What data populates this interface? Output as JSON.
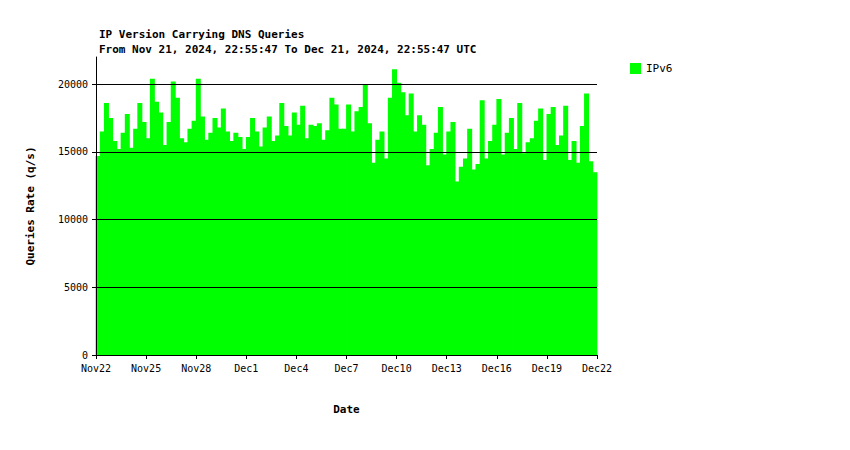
{
  "chart_data": {
    "type": "bar",
    "title": "IP Version Carrying DNS Queries",
    "subtitle": "From Nov 21, 2024, 22:55:47 To Dec 21, 2024, 22:55:47 UTC",
    "x_label": "Date",
    "y_label": "Queries Rate (q/s)",
    "x": [
      0.125,
      0.375,
      0.625,
      0.875,
      1.125,
      1.375,
      1.625,
      1.875,
      2.125,
      2.375,
      2.625,
      2.875,
      3.125,
      3.375,
      3.625,
      3.875,
      4.125,
      4.375,
      4.625,
      4.875,
      5.125,
      5.375,
      5.625,
      5.875,
      6.125,
      6.375,
      6.625,
      6.875,
      7.125,
      7.375,
      7.625,
      7.875,
      8.125,
      8.375,
      8.625,
      8.875,
      9.125,
      9.375,
      9.625,
      9.875,
      10.125,
      10.375,
      10.625,
      10.875,
      11.125,
      11.375,
      11.625,
      11.875,
      12.125,
      12.375,
      12.625,
      12.875,
      13.125,
      13.375,
      13.625,
      13.875,
      14.125,
      14.375,
      14.625,
      14.875,
      15.125,
      15.375,
      15.625,
      15.875,
      16.125,
      16.375,
      16.625,
      16.875,
      17.125,
      17.375,
      17.625,
      17.875,
      18.125,
      18.375,
      18.625,
      18.875,
      19.125,
      19.375,
      19.625,
      19.875,
      20.125,
      20.375,
      20.625,
      20.875,
      21.125,
      21.375,
      21.625,
      21.875,
      22.125,
      22.375,
      22.625,
      22.875,
      23.125,
      23.375,
      23.625,
      23.875,
      24.125,
      24.375,
      24.625,
      24.875,
      25.125,
      25.375,
      25.625,
      25.875,
      26.125,
      26.375,
      26.625,
      26.875,
      27.125,
      27.375,
      27.625,
      27.875,
      28.125,
      28.375,
      28.625,
      28.875,
      29.125,
      29.375,
      29.625,
      29.875
    ],
    "series": [
      {
        "name": "IPv6",
        "color": "#00ff00",
        "values": [
          14700,
          16500,
          18600,
          17500,
          15800,
          15200,
          16400,
          17800,
          15300,
          16700,
          18600,
          17200,
          16000,
          20400,
          18700,
          17900,
          15500,
          17200,
          20200,
          19000,
          16000,
          15700,
          16700,
          17300,
          20400,
          17600,
          15900,
          16400,
          17500,
          16800,
          18200,
          16500,
          15800,
          16400,
          16100,
          15200,
          16100,
          17500,
          16500,
          15400,
          16800,
          17600,
          15800,
          16200,
          18600,
          16900,
          16200,
          17900,
          17000,
          18400,
          16000,
          17000,
          16900,
          17100,
          15900,
          16600,
          19000,
          18500,
          16700,
          16700,
          18500,
          16500,
          18000,
          18300,
          20000,
          17100,
          14200,
          15900,
          16500,
          14500,
          19000,
          21100,
          20100,
          19400,
          17700,
          19300,
          16500,
          17700,
          17000,
          14000,
          15200,
          16400,
          18300,
          14800,
          16500,
          17200,
          12800,
          13900,
          14500,
          16700,
          13700,
          14100,
          18800,
          14500,
          15800,
          17000,
          18900,
          14800,
          16400,
          17500,
          15200,
          18600,
          14900,
          15700,
          16000,
          17300,
          18200,
          14400,
          17800,
          18300,
          15500,
          16200,
          18400,
          14400,
          15800,
          14200,
          16900,
          19300,
          14300,
          13500
        ]
      }
    ],
    "xlim": [
      0,
      30
    ],
    "xticks": [
      {
        "value": 0,
        "label": "Nov22"
      },
      {
        "value": 3,
        "label": "Nov25"
      },
      {
        "value": 6,
        "label": "Nov28"
      },
      {
        "value": 9,
        "label": "Dec1"
      },
      {
        "value": 12,
        "label": "Dec4"
      },
      {
        "value": 15,
        "label": "Dec7"
      },
      {
        "value": 18,
        "label": "Dec10"
      },
      {
        "value": 21,
        "label": "Dec13"
      },
      {
        "value": 24,
        "label": "Dec16"
      },
      {
        "value": 27,
        "label": "Dec19"
      },
      {
        "value": 30,
        "label": "Dec22"
      }
    ],
    "ylim": [
      0,
      22000
    ],
    "yticks": [
      0,
      5000,
      10000,
      15000,
      20000
    ],
    "grid": true,
    "legend": "upper right"
  }
}
